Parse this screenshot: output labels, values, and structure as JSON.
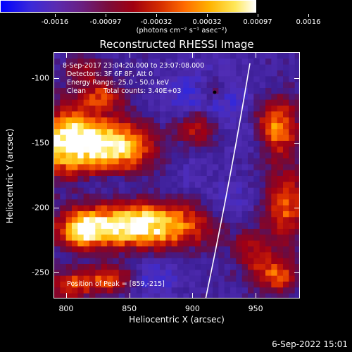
{
  "colorbar": {
    "tick_labels": [
      "-0.0016",
      "-0.00097",
      "-0.00032",
      "0.00032",
      "0.00097",
      "0.0016"
    ],
    "units": "(photons cm⁻² s⁻¹ asec⁻²)"
  },
  "title": "Reconstructed RHESSI Image",
  "info": {
    "time_range": "8-Sep-2017 23:04:20.000 to 23:07:08.000",
    "detectors": "Detectors: 3F 6F 8F, Att 0",
    "energy": "Energy Range: 25.0 - 50.0 keV",
    "clean": "Clean",
    "counts": "Total counts: 3.40E+03",
    "peak": "Position of Peak = [859,-215]"
  },
  "chart_data": {
    "type": "heatmap",
    "title": "Reconstructed RHESSI Image",
    "xlabel": "Heliocentric X (arcsec)",
    "ylabel": "Heliocentric Y (arcsec)",
    "x_ticks": [
      "800",
      "850",
      "900",
      "950"
    ],
    "y_ticks": [
      "-100",
      "-150",
      "-200",
      "-250"
    ],
    "xlim": [
      790,
      985
    ],
    "ylim": [
      -270,
      -80
    ],
    "colorbar_range": [
      -0.0016,
      0.0016
    ],
    "peak_position": [
      859,
      -215
    ],
    "limb_present": true
  },
  "footer_date": "6-Sep-2022 15:01"
}
